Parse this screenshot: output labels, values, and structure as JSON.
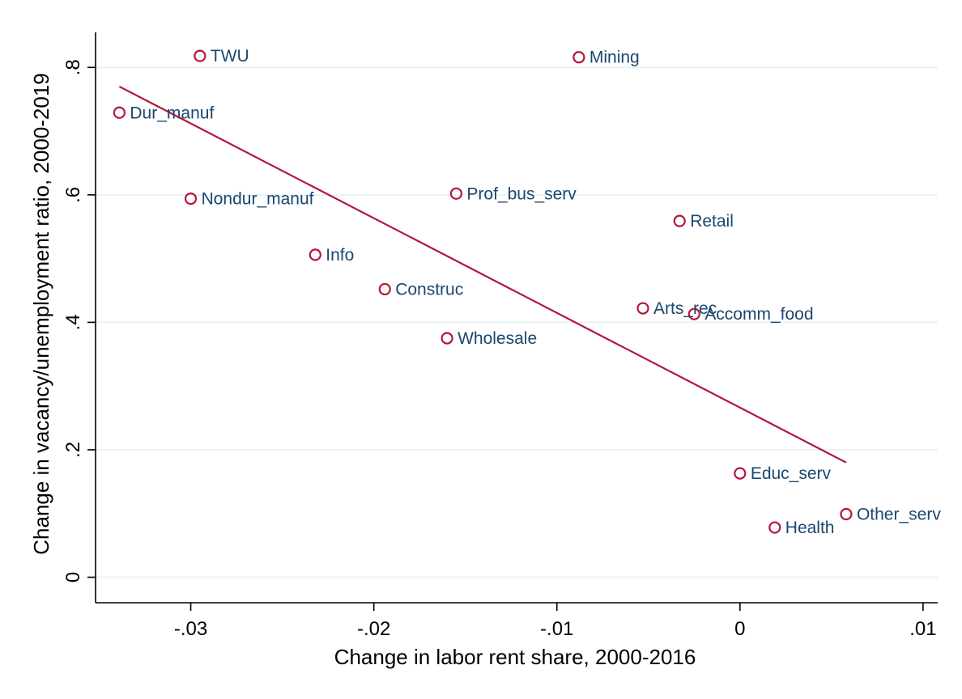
{
  "chart_data": {
    "type": "scatter",
    "xlabel": "Change in labor rent share, 2000-2016",
    "ylabel": "Change in vacancy/unemployment ratio, 2000-2019",
    "xlim": [
      -0.0352,
      0.0108
    ],
    "ylim": [
      -0.04,
      0.855
    ],
    "x_ticks": [
      -0.03,
      -0.02,
      -0.01,
      0,
      0.01
    ],
    "x_tick_labels": [
      "-.03",
      "-.02",
      "-.01",
      "0",
      ".01"
    ],
    "y_ticks": [
      0,
      0.2,
      0.4,
      0.6,
      0.8
    ],
    "y_tick_labels": [
      "0",
      ".2",
      ".4",
      ".6",
      ".8"
    ],
    "grid": "horizontal",
    "points": [
      {
        "label": "TWU",
        "x": -0.0295,
        "y": 0.818
      },
      {
        "label": "Mining",
        "x": -0.0088,
        "y": 0.816
      },
      {
        "label": "Dur_manuf",
        "x": -0.0339,
        "y": 0.729
      },
      {
        "label": "Nondur_manuf",
        "x": -0.03,
        "y": 0.594
      },
      {
        "label": "Prof_bus_serv",
        "x": -0.0155,
        "y": 0.602
      },
      {
        "label": "Retail",
        "x": -0.0033,
        "y": 0.559
      },
      {
        "label": "Info",
        "x": -0.0232,
        "y": 0.506
      },
      {
        "label": "Construc",
        "x": -0.0194,
        "y": 0.452
      },
      {
        "label": "Arts_rec",
        "x": -0.0053,
        "y": 0.422
      },
      {
        "label": "Accomm_food",
        "x": -0.0025,
        "y": 0.413
      },
      {
        "label": "Wholesale",
        "x": -0.016,
        "y": 0.375
      },
      {
        "label": "Educ_serv",
        "x": 0.0,
        "y": 0.163
      },
      {
        "label": "Other_serv",
        "x": 0.0058,
        "y": 0.099
      },
      {
        "label": "Health",
        "x": 0.0019,
        "y": 0.078
      }
    ],
    "fit_line": {
      "x": [
        -0.0339,
        0.0058
      ],
      "y": [
        0.77,
        0.18
      ]
    }
  }
}
